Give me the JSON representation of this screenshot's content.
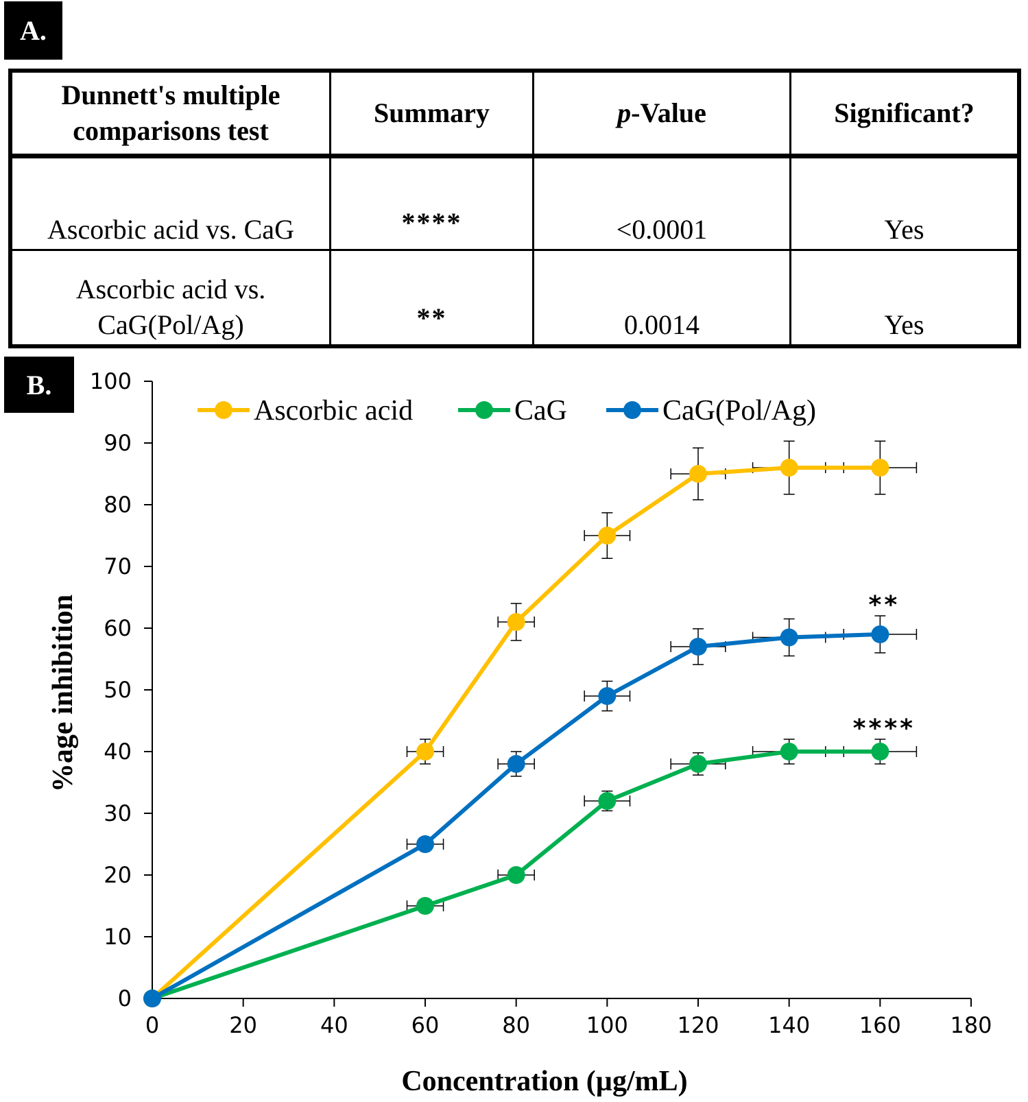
{
  "panel_a": {
    "label": "A.",
    "headers": [
      {
        "line1": "Dunnett's multiple",
        "line2": "comparisons test"
      },
      {
        "prefix": "",
        "suffix": "Summary"
      },
      {
        "prefix": "p",
        "suffix": "-Value"
      },
      {
        "prefix": "",
        "suffix": "Significant?"
      }
    ],
    "rows": [
      {
        "comparison_line1": "Ascorbic acid vs. CaG",
        "comparison_line2": "",
        "summary": "****",
        "p_value": "<0.0001",
        "significant": "Yes"
      },
      {
        "comparison_line1": "Ascorbic acid vs.",
        "comparison_line2": "CaG(Pol/Ag)",
        "summary": "**",
        "p_value": "0.0014",
        "significant": "Yes"
      }
    ]
  },
  "panel_b": {
    "label": "B."
  },
  "chart_data": {
    "type": "line",
    "title": "",
    "xlabel": "Concentration (µg/mL)",
    "ylabel": "%age inhibition",
    "xlim": [
      0,
      180
    ],
    "ylim": [
      0,
      100
    ],
    "xticks": [
      0,
      20,
      40,
      60,
      80,
      100,
      120,
      140,
      160,
      180
    ],
    "yticks": [
      0,
      10,
      20,
      30,
      40,
      50,
      60,
      70,
      80,
      90,
      100
    ],
    "grid": false,
    "legend_position": "top",
    "x": [
      0,
      60,
      80,
      100,
      120,
      140,
      160
    ],
    "x_error": [
      0,
      4,
      4,
      5,
      6,
      8,
      8
    ],
    "series": [
      {
        "name": "Ascorbic acid",
        "color": "#FFC000",
        "values": [
          0,
          40,
          61,
          75,
          85,
          86,
          86
        ],
        "y_error": [
          0,
          2,
          3,
          3.7,
          4.2,
          4.3,
          4.3
        ]
      },
      {
        "name": "CaG",
        "color": "#00B050",
        "values": [
          0,
          15,
          20,
          32,
          38,
          40,
          40
        ],
        "y_error": [
          0,
          1,
          1,
          1.6,
          1.8,
          2,
          2
        ]
      },
      {
        "name": "CaG(Pol/Ag)",
        "color": "#0070C0",
        "values": [
          0,
          25,
          38,
          49,
          57,
          58.5,
          59
        ],
        "y_error": [
          0,
          1,
          2,
          2.4,
          2.9,
          3,
          3
        ]
      }
    ],
    "annotations": [
      {
        "text": "**",
        "x": 160,
        "y": 64
      },
      {
        "text": "****",
        "x": 160,
        "y": 44
      }
    ]
  }
}
